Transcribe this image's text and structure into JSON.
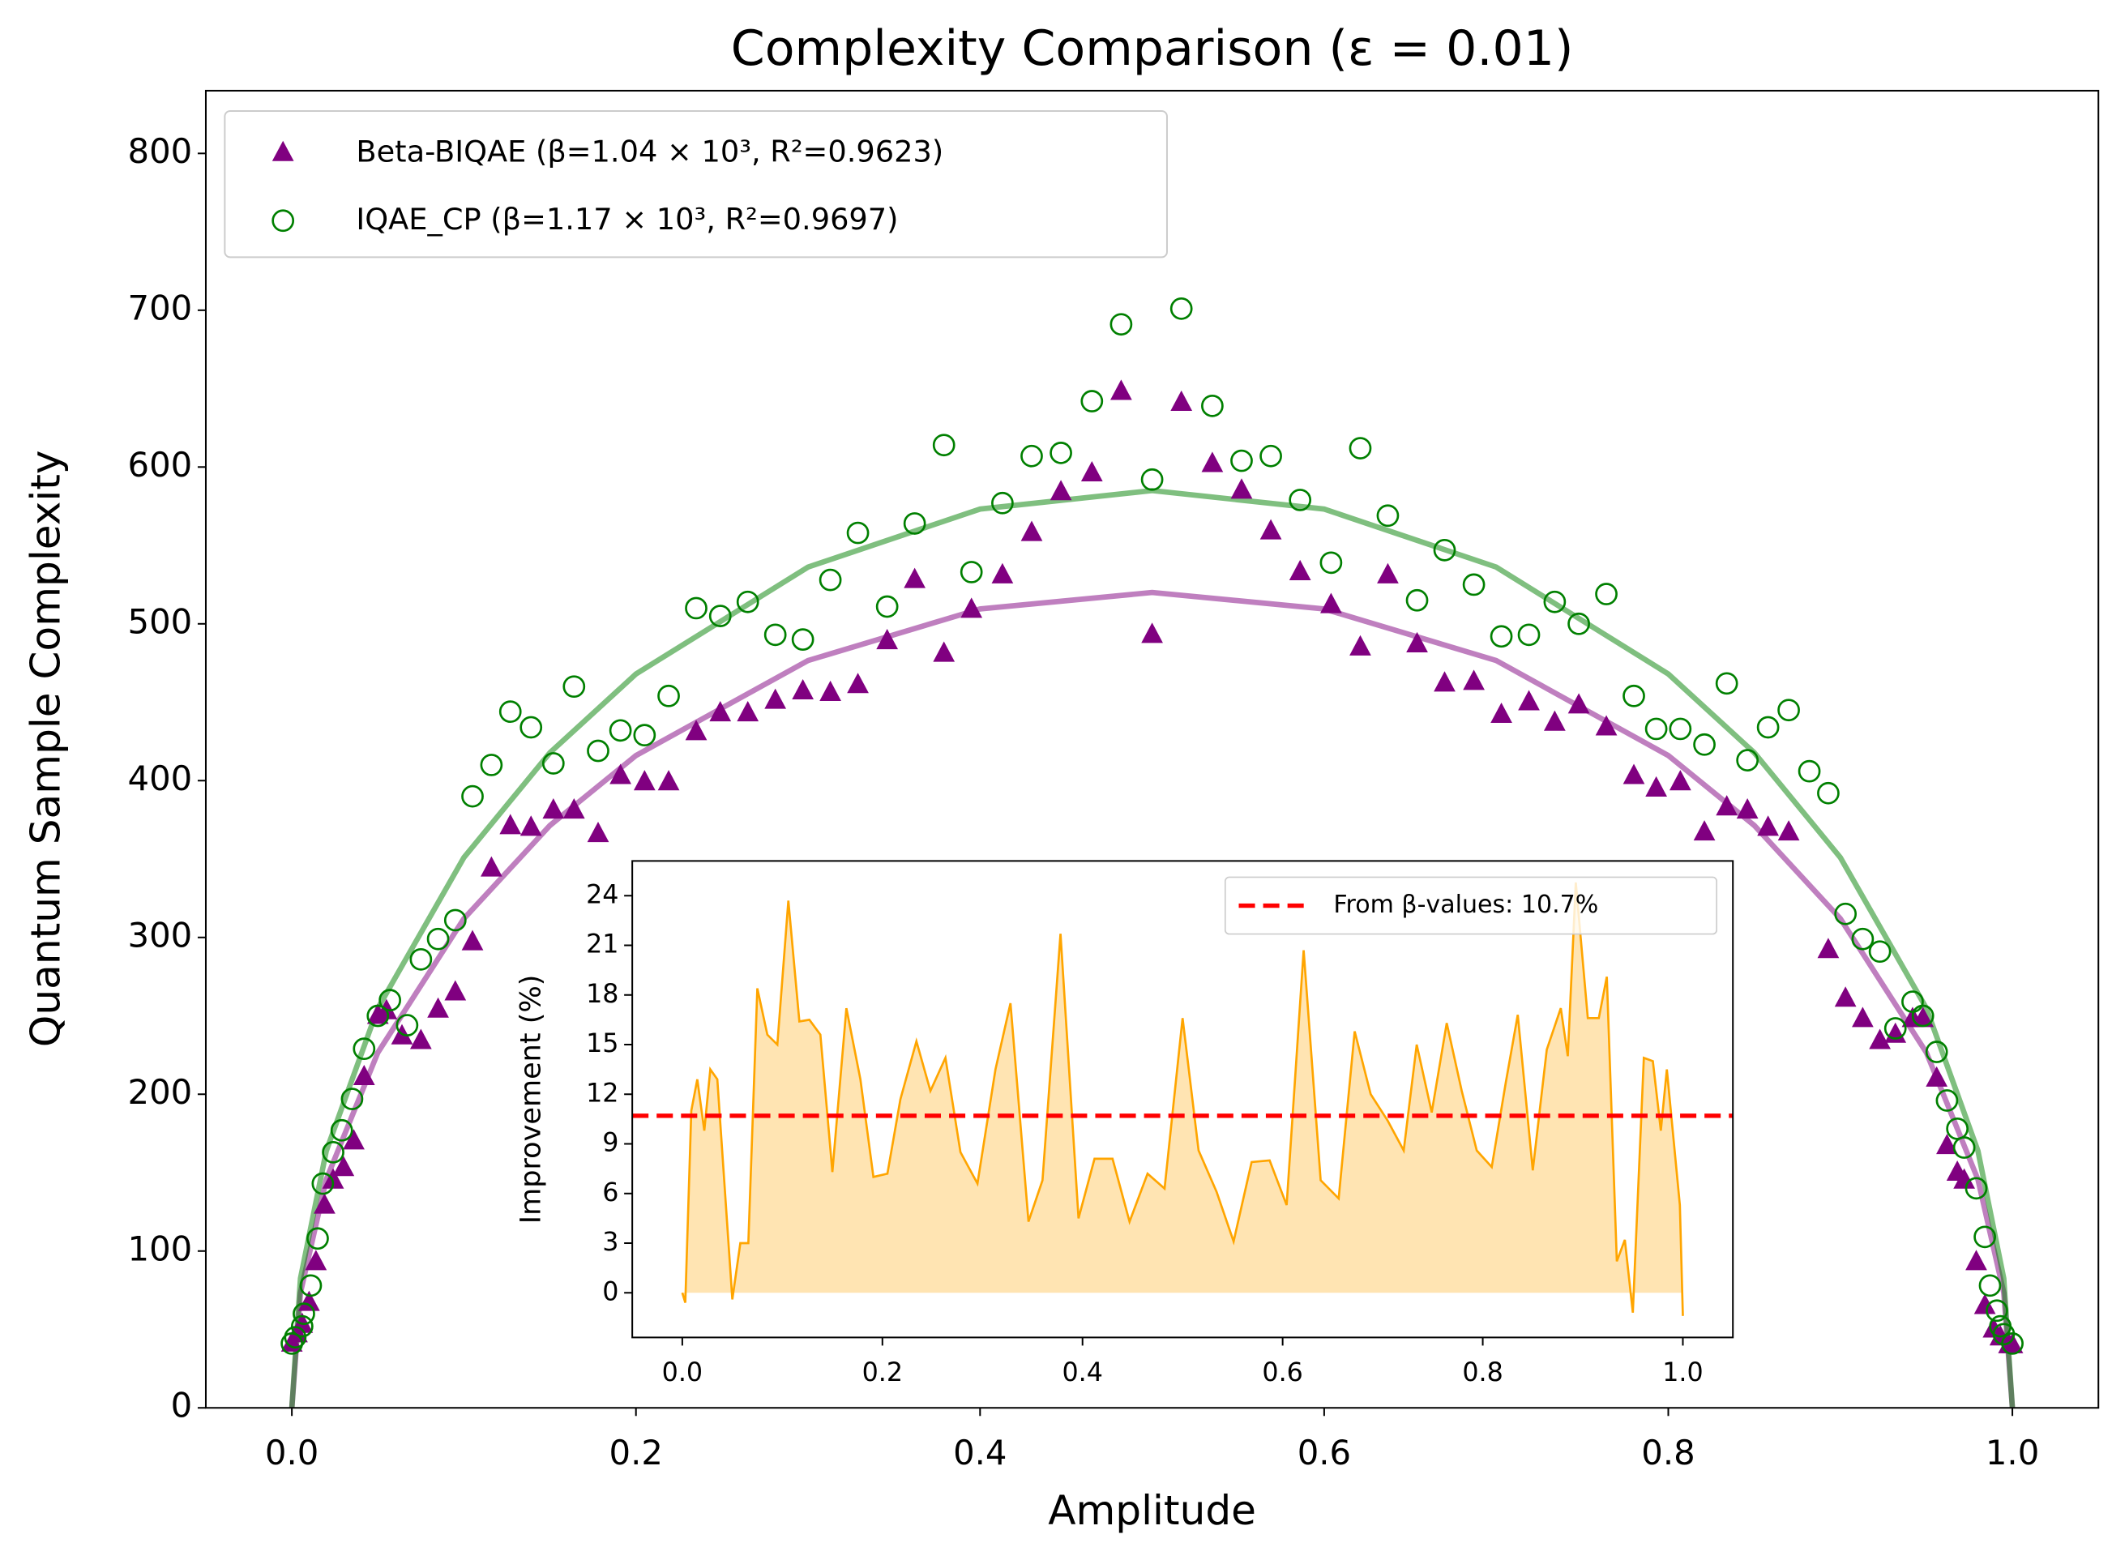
{
  "chart_data": [
    {
      "type": "scatter",
      "title": "Complexity Comparison (ε = 0.01)",
      "x_label": "Amplitude",
      "y_label": "Quantum Sample Complexity",
      "xlim": [
        -0.05,
        1.05
      ],
      "ylim": [
        0,
        840
      ],
      "xticks": [
        {
          "value": 0,
          "label": "0.0"
        },
        0.2,
        0.4,
        0.6,
        0.8,
        {
          "value": 1,
          "label": "1.0"
        }
      ],
      "yticks": [
        0,
        100,
        200,
        300,
        400,
        500,
        600,
        700,
        800
      ],
      "legend": "upper left",
      "series": [
        {
          "type": "line",
          "color": "#800080",
          "x": [
            0,
            0.005,
            0.02,
            0.05,
            0.1,
            0.15,
            0.2,
            0.3,
            0.4,
            0.5,
            0.6,
            0.7,
            0.8,
            0.85,
            0.9,
            0.95,
            0.98,
            0.995,
            1
          ],
          "values": [
            0,
            73.4,
            145.6,
            226.6,
            312,
            371.4,
            416,
            476.6,
            509.5,
            520,
            509.5,
            476.6,
            416,
            371.4,
            312,
            226.6,
            145.6,
            73.4,
            0
          ]
        },
        {
          "type": "line",
          "color": "#008000",
          "x": [
            0,
            0.005,
            0.02,
            0.05,
            0.1,
            0.15,
            0.2,
            0.3,
            0.4,
            0.5,
            0.6,
            0.7,
            0.8,
            0.85,
            0.9,
            0.95,
            0.98,
            0.995,
            1
          ],
          "values": [
            0,
            82.5,
            163.8,
            254.9,
            351,
            417.8,
            468,
            536.2,
            573.2,
            585,
            573.2,
            536.2,
            468,
            417.8,
            351,
            254.9,
            163.8,
            82.5,
            0
          ]
        },
        {
          "type": "scatter",
          "marker": "triangle",
          "color": "#800080",
          "name": "Beta-BIQAE (β=1.04 × 10³, R²=0.9623)",
          "x": [
            0,
            0.003,
            0.006,
            0.01,
            0.014,
            0.019,
            0.024,
            0.03,
            0.036,
            0.042,
            0.05,
            0.055,
            0.064,
            0.075,
            0.085,
            0.095,
            0.105,
            0.116,
            0.127,
            0.139,
            0.152,
            0.164,
            0.178,
            0.191,
            0.205,
            0.219,
            0.235,
            0.249,
            0.265,
            0.281,
            0.297,
            0.313,
            0.329,
            0.346,
            0.362,
            0.379,
            0.395,
            0.413,
            0.43,
            0.447,
            0.465,
            0.482,
            0.5,
            0.517,
            0.535,
            0.552,
            0.569,
            0.586,
            0.604,
            0.621,
            0.637,
            0.654,
            0.67,
            0.687,
            0.703,
            0.719,
            0.734,
            0.748,
            0.764,
            0.78,
            0.793,
            0.807,
            0.821,
            0.834,
            0.846,
            0.858,
            0.87,
            0.893,
            0.903,
            0.913,
            0.923,
            0.932,
            0.942,
            0.948,
            0.956,
            0.962,
            0.968,
            0.972,
            0.979,
            0.984,
            0.989,
            0.993,
            0.998,
            1
          ],
          "values": [
            41,
            47,
            53,
            67,
            93,
            129,
            145,
            153,
            170,
            211,
            250,
            253,
            237,
            234,
            254,
            265,
            297,
            344,
            371,
            370,
            381,
            381,
            366,
            403,
            399,
            399,
            431,
            443,
            443,
            451,
            457,
            456,
            461,
            489,
            528,
            481,
            509,
            531,
            558,
            584,
            596,
            648,
            493,
            641,
            602,
            585,
            559,
            533,
            512,
            485,
            531,
            487,
            462,
            463,
            442,
            450,
            437,
            448,
            434,
            403,
            395,
            399,
            367,
            383,
            381,
            370,
            367,
            292,
            261,
            248,
            234,
            238,
            248,
            248,
            210,
            167,
            150,
            145,
            93,
            65,
            50,
            45,
            40,
            40
          ]
        },
        {
          "type": "scatter",
          "marker": "circle",
          "color": "#008000",
          "name": "IQAE_CP (β=1.17 × 10³, R²=0.9697)",
          "x": [
            0,
            0.002,
            0.006,
            0.007,
            0.011,
            0.015,
            0.018,
            0.024,
            0.029,
            0.035,
            0.042,
            0.05,
            0.057,
            0.067,
            0.075,
            0.085,
            0.095,
            0.105,
            0.116,
            0.127,
            0.139,
            0.152,
            0.164,
            0.178,
            0.191,
            0.205,
            0.219,
            0.235,
            0.249,
            0.265,
            0.281,
            0.297,
            0.313,
            0.329,
            0.346,
            0.362,
            0.379,
            0.395,
            0.413,
            0.43,
            0.447,
            0.465,
            0.482,
            0.5,
            0.517,
            0.535,
            0.552,
            0.569,
            0.586,
            0.604,
            0.621,
            0.637,
            0.654,
            0.67,
            0.687,
            0.703,
            0.719,
            0.734,
            0.748,
            0.764,
            0.78,
            0.793,
            0.807,
            0.821,
            0.834,
            0.846,
            0.858,
            0.87,
            0.882,
            0.893,
            0.903,
            0.913,
            0.923,
            0.932,
            0.942,
            0.948,
            0.956,
            0.962,
            0.968,
            0.972,
            0.979,
            0.984,
            0.987,
            0.991,
            0.993,
            0.995,
            1
          ],
          "values": [
            41,
            45,
            52,
            60,
            78,
            108,
            143,
            163,
            177,
            197,
            229,
            250,
            260,
            244,
            286,
            299,
            311,
            390,
            410,
            444,
            434,
            411,
            460,
            419,
            432,
            429,
            454,
            510,
            505,
            514,
            493,
            490,
            528,
            558,
            511,
            564,
            614,
            533,
            577,
            607,
            609,
            642,
            691,
            592,
            701,
            639,
            604,
            607,
            579,
            539,
            612,
            569,
            515,
            547,
            525,
            492,
            493,
            514,
            500,
            519,
            454,
            433,
            433,
            423,
            462,
            413,
            434,
            445,
            406,
            392,
            315,
            299,
            291,
            242,
            259,
            250,
            227,
            196,
            178,
            166,
            140,
            109,
            78,
            62,
            52,
            47,
            41
          ]
        }
      ]
    },
    {
      "type": "area",
      "y_label": "Improvement (%)",
      "xlim": [
        -0.05,
        1.05
      ],
      "ylim": [
        -2.7,
        26.1
      ],
      "xticks": [
        {
          "value": 0,
          "label": "0.0"
        },
        0.2,
        0.4,
        0.6,
        0.8,
        {
          "value": 1,
          "label": "1.0"
        }
      ],
      "yticks": [
        0,
        3,
        6,
        9,
        12,
        15,
        18,
        21,
        24
      ],
      "color": "#ffa500",
      "legend": "upper right",
      "hline": {
        "value": 10.7,
        "label": "From β-values: 10.7%",
        "color": "#ff0000"
      },
      "x": [
        0,
        0.003,
        0.009,
        0.015,
        0.022,
        0.028,
        0.035,
        0.05,
        0.058,
        0.066,
        0.075,
        0.085,
        0.095,
        0.106,
        0.117,
        0.127,
        0.138,
        0.15,
        0.164,
        0.178,
        0.191,
        0.205,
        0.218,
        0.234,
        0.248,
        0.263,
        0.278,
        0.295,
        0.313,
        0.328,
        0.346,
        0.36,
        0.378,
        0.396,
        0.412,
        0.43,
        0.447,
        0.465,
        0.482,
        0.5,
        0.516,
        0.534,
        0.551,
        0.569,
        0.587,
        0.604,
        0.621,
        0.638,
        0.656,
        0.672,
        0.688,
        0.705,
        0.721,
        0.734,
        0.749,
        0.764,
        0.779,
        0.794,
        0.809,
        0.823,
        0.835,
        0.85,
        0.864,
        0.878,
        0.885,
        0.893,
        0.905,
        0.916,
        0.924,
        0.934,
        0.942,
        0.95,
        0.961,
        0.97,
        0.978,
        0.984,
        0.997,
        1
      ],
      "values": [
        0,
        -0.6,
        11,
        12.9,
        9.8,
        13.5,
        12.9,
        -0.4,
        3,
        3,
        18.4,
        15.6,
        15,
        23.7,
        16.4,
        16.5,
        15.6,
        7.3,
        17.2,
        12.9,
        7,
        7.2,
        11.7,
        15.2,
        12.2,
        14.2,
        8.5,
        6.6,
        13.5,
        17.5,
        4.3,
        6.8,
        21.7,
        4.5,
        8.1,
        8.1,
        4.3,
        7.2,
        6.3,
        16.6,
        8.6,
        6.1,
        3.1,
        7.9,
        8,
        5.3,
        20.7,
        6.8,
        5.7,
        15.8,
        12,
        10.4,
        8.6,
        15,
        10.9,
        16.3,
        12.2,
        8.6,
        7.6,
        12.7,
        16.8,
        7.4,
        14.7,
        17.2,
        14.3,
        24.8,
        16.6,
        16.6,
        19.1,
        1.9,
        3.2,
        -1.2,
        14.2,
        14,
        9.8,
        13.5,
        5.3,
        -1.4
      ]
    }
  ]
}
